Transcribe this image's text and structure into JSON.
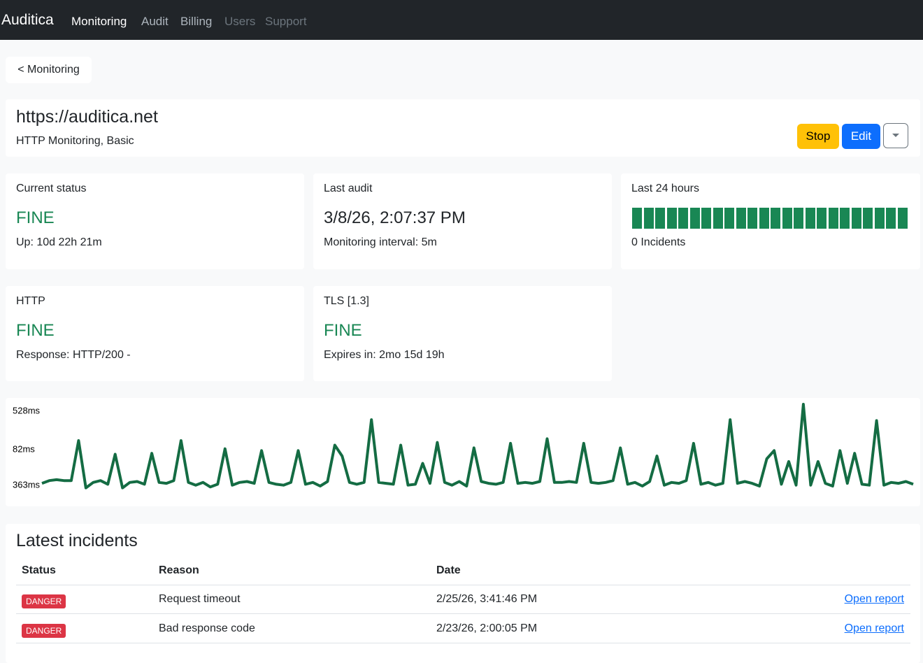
{
  "nav": {
    "brand": "Auditica",
    "items": [
      "Monitoring",
      "Audit",
      "Billing",
      "Users",
      "Support"
    ]
  },
  "back_button": "< Monitoring",
  "header": {
    "title": "https://auditica.net",
    "subtitle": "HTTP Monitoring, Basic",
    "buttons": [
      "Stop",
      "Edit"
    ]
  },
  "cards": [
    {
      "title": "Current status",
      "value": "FINE",
      "detail": "Up: 10d 22h 21m"
    },
    {
      "title": "Last audit",
      "value": "3/8/26, 2:07:37 PM",
      "detail": "Monitoring interval: 5m"
    },
    {
      "title": "Last 24 hours",
      "detail": "0 Incidents"
    },
    {
      "title": "HTTP",
      "value": "FINE",
      "detail": "Response: HTTP/200 -"
    },
    {
      "title": "TLS [1.3]",
      "value": "FINE",
      "detail": "Expires in: 2mo 15d 19h"
    }
  ],
  "response_chart": {
    "type": "line",
    "y_labels": [
      "528ms",
      "82ms",
      "363ms"
    ],
    "color": "#146c43",
    "ylim": [
      0,
      100
    ],
    "values": [
      13,
      16,
      17,
      16,
      16,
      60,
      8,
      14,
      16,
      12,
      45,
      8,
      14,
      15,
      12,
      46,
      14,
      13,
      16,
      60,
      14,
      11,
      14,
      9,
      12,
      51,
      11,
      14,
      15,
      13,
      49,
      14,
      12,
      11,
      14,
      49,
      12,
      14,
      10,
      15,
      55,
      43,
      14,
      12,
      14,
      83,
      14,
      13,
      12,
      55,
      11,
      12,
      35,
      13,
      58,
      14,
      11,
      15,
      10,
      52,
      15,
      13,
      12,
      14,
      57,
      13,
      14,
      13,
      15,
      62,
      14,
      14,
      15,
      14,
      57,
      14,
      13,
      14,
      16,
      52,
      12,
      14,
      10,
      15,
      43,
      11,
      14,
      13,
      16,
      57,
      12,
      14,
      11,
      13,
      83,
      13,
      15,
      13,
      10,
      40,
      49,
      12,
      37,
      11,
      100,
      11,
      37,
      13,
      10,
      49,
      13,
      46,
      12,
      11,
      82,
      11,
      14,
      13,
      15,
      12
    ]
  },
  "incidents": {
    "title": "Latest incidents",
    "columns": [
      "Status",
      "Reason",
      "Date"
    ],
    "rows": [
      [
        "DANGER",
        "Request timeout",
        "2/25/26, 3:41:46 PM",
        "Open report"
      ],
      [
        "DANGER",
        "Bad response code",
        "2/23/26, 2:00:05 PM",
        "Open report"
      ]
    ]
  }
}
